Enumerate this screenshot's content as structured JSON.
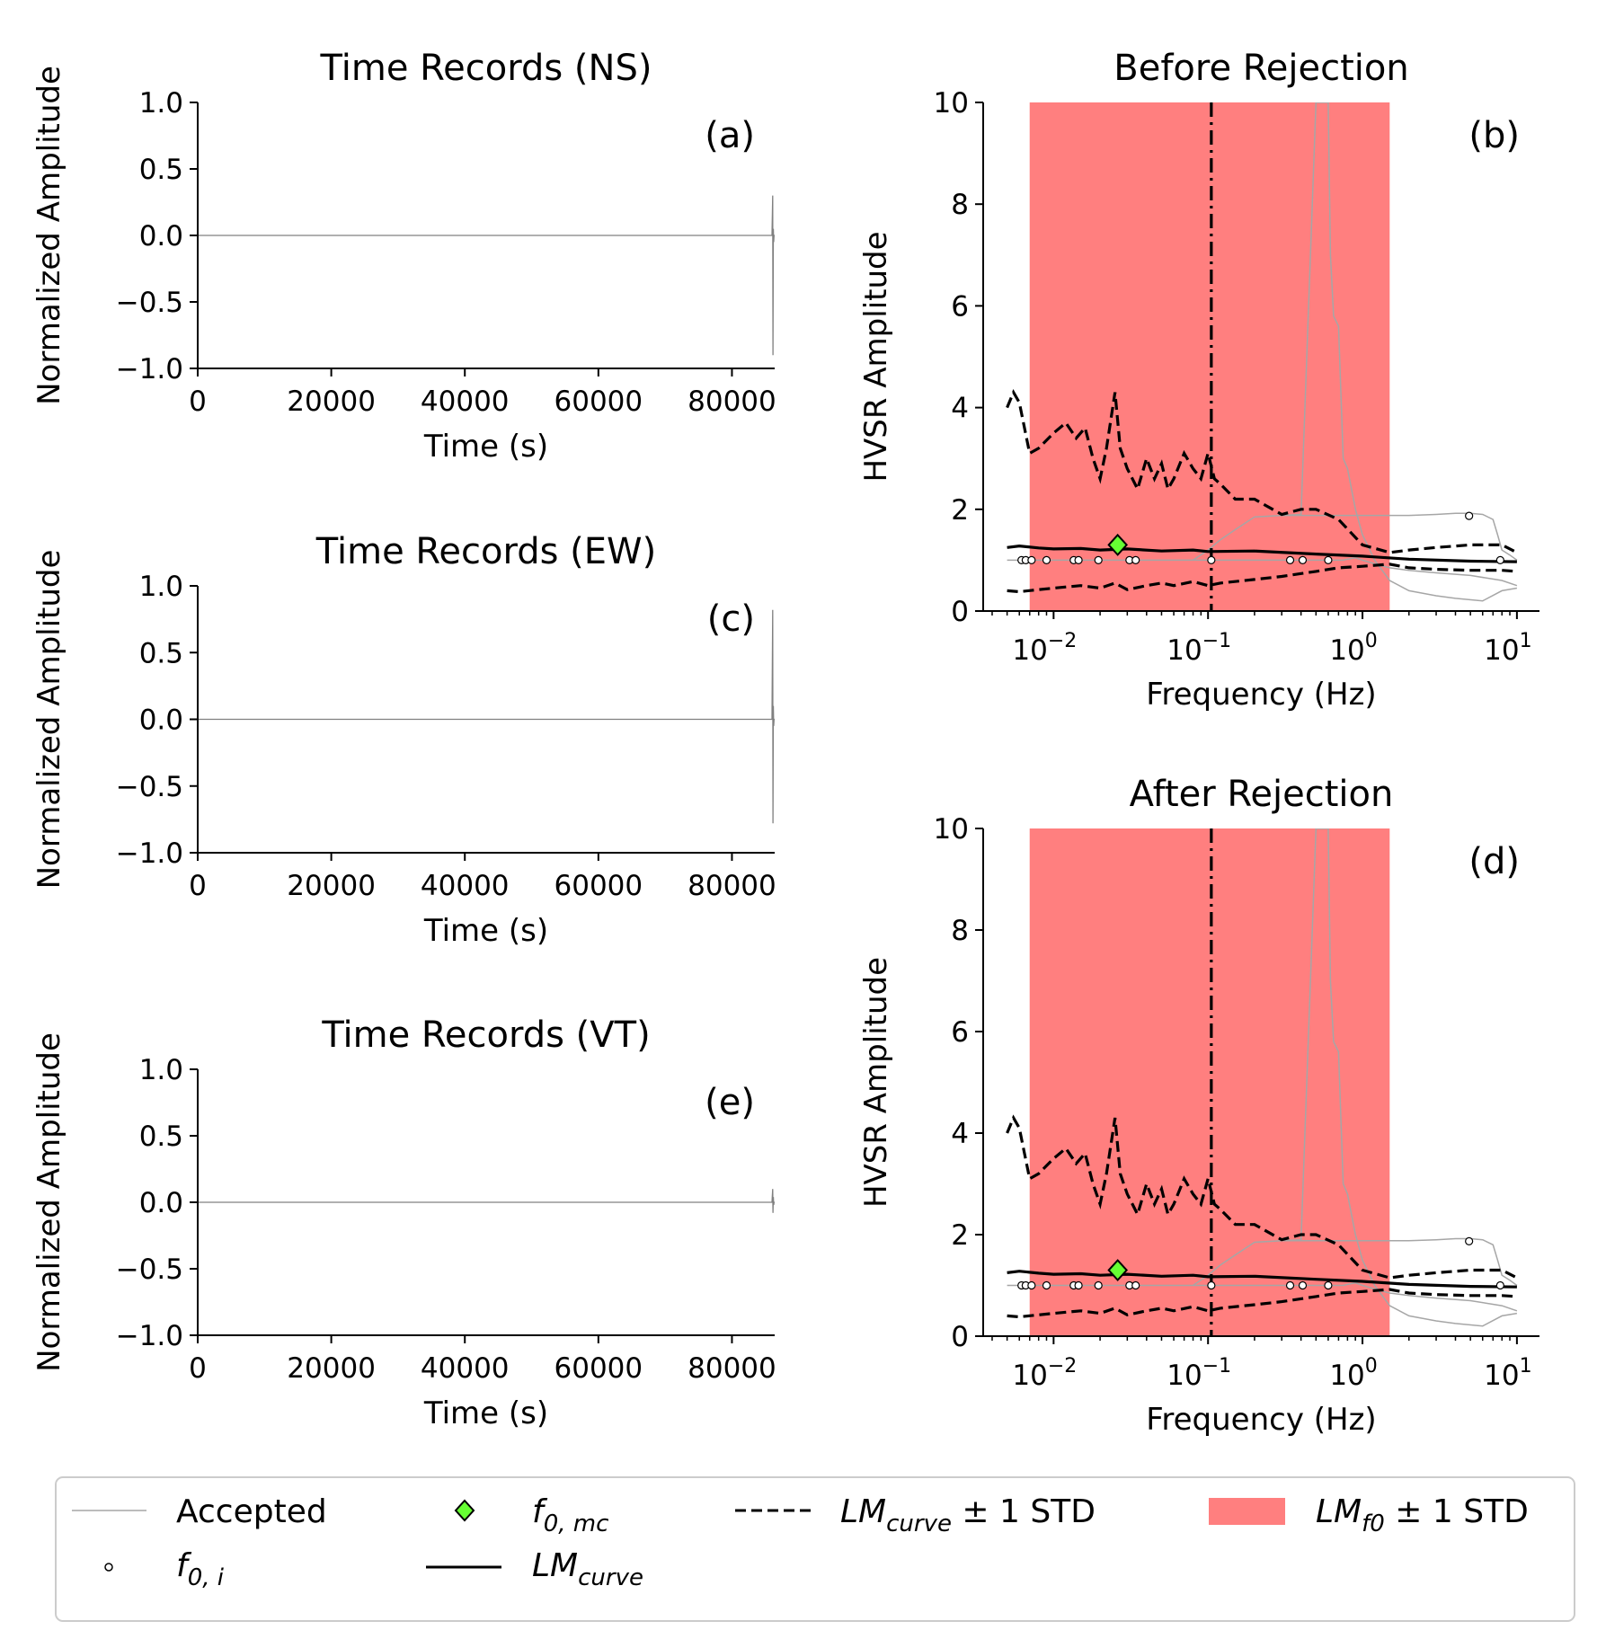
{
  "colors": {
    "trace": "#808080",
    "accepted": "#a6a6a6",
    "band": "#ff7f7f",
    "diamond": "#66ff33",
    "axis": "#000000"
  },
  "chart_data": [
    {
      "id": "a",
      "type": "line",
      "title": "Time Records (NS)",
      "panel_label": "(a)",
      "xlabel": "Time (s)",
      "ylabel": "Normalized Amplitude",
      "xlim": [
        0,
        86400
      ],
      "ylim": [
        -1.0,
        1.0
      ],
      "xticks": [
        0,
        20000,
        40000,
        60000,
        80000
      ],
      "yticks": [
        1.0,
        0.5,
        0.0,
        -0.5,
        -1.0
      ],
      "ytick_labels": [
        "1.0",
        "0.5",
        "0.0",
        "−0.5",
        "−1.0"
      ],
      "series": [
        {
          "x": [
            0,
            86000,
            86100,
            86150,
            86200,
            86250,
            86300,
            86400
          ],
          "y": [
            0,
            0,
            0.3,
            -0.9,
            0.05,
            -0.05,
            0,
            0
          ]
        }
      ]
    },
    {
      "id": "c",
      "type": "line",
      "title": "Time Records (EW)",
      "panel_label": "(c)",
      "xlabel": "Time (s)",
      "ylabel": "Normalized Amplitude",
      "xlim": [
        0,
        86400
      ],
      "ylim": [
        -1.0,
        1.0
      ],
      "xticks": [
        0,
        20000,
        40000,
        60000,
        80000
      ],
      "yticks": [
        1.0,
        0.5,
        0.0,
        -0.5,
        -1.0
      ],
      "ytick_labels": [
        "1.0",
        "0.5",
        "0.0",
        "−0.5",
        "−1.0"
      ],
      "series": [
        {
          "x": [
            0,
            86000,
            86100,
            86150,
            86200,
            86250,
            86300,
            86400
          ],
          "y": [
            0,
            0,
            0.82,
            -0.78,
            0.1,
            -0.05,
            0,
            0
          ]
        }
      ]
    },
    {
      "id": "e",
      "type": "line",
      "title": "Time Records (VT)",
      "panel_label": "(e)",
      "xlabel": "Time (s)",
      "ylabel": "Normalized Amplitude",
      "xlim": [
        0,
        86400
      ],
      "ylim": [
        -1.0,
        1.0
      ],
      "xticks": [
        0,
        20000,
        40000,
        60000,
        80000
      ],
      "yticks": [
        1.0,
        0.5,
        0.0,
        -0.5,
        -1.0
      ],
      "ytick_labels": [
        "1.0",
        "0.5",
        "0.0",
        "−0.5",
        "−1.0"
      ],
      "series": [
        {
          "x": [
            0,
            86000,
            86100,
            86150,
            86200,
            86250,
            86300,
            86400
          ],
          "y": [
            0,
            0,
            0.1,
            -0.08,
            0.04,
            -0.02,
            0,
            0
          ]
        }
      ]
    },
    {
      "id": "b",
      "type": "line",
      "title": "Before Rejection",
      "panel_label": "(b)",
      "xlabel": "Frequency (Hz)",
      "ylabel": "HVSR Amplitude",
      "xscale": "log",
      "xlim": [
        0.0035,
        14
      ],
      "ylim": [
        0,
        10
      ],
      "xticks": [
        0.01,
        0.1,
        1,
        10
      ],
      "xtick_labels": [
        [
          "10",
          "−2"
        ],
        [
          "10",
          "−1"
        ],
        [
          "10",
          "0"
        ],
        [
          "10",
          "1"
        ]
      ],
      "yticks": [
        0,
        2,
        4,
        6,
        8,
        10
      ],
      "band": [
        0.007,
        1.5
      ],
      "vline": 0.105,
      "accepted_curves": [
        {
          "x": [
            0.005,
            0.3,
            0.6,
            0.7,
            0.75,
            0.8,
            0.9,
            1.0,
            1.3,
            1.5,
            2.0,
            3.0,
            5.0,
            8.0,
            10.0
          ],
          "y": [
            1.0,
            1.0,
            1.0,
            1.0,
            1.0,
            1.02,
            1.05,
            1.0,
            0.9,
            0.85,
            0.8,
            0.75,
            0.7,
            0.6,
            0.5
          ]
        },
        {
          "x": [
            0.08,
            0.1,
            0.12,
            0.15,
            0.2,
            0.3,
            0.4,
            0.5,
            0.6,
            0.62,
            0.65,
            0.7,
            0.75,
            0.8,
            0.9,
            1.0,
            1.2,
            1.5,
            2.0,
            3.0,
            4.0,
            6.0,
            8.0,
            10.0
          ],
          "y": [
            1.0,
            1.2,
            1.4,
            1.6,
            1.85,
            1.88,
            1.9,
            10,
            10,
            7.0,
            5.8,
            5.6,
            3.0,
            2.8,
            2.0,
            1.5,
            1.0,
            0.6,
            0.4,
            0.3,
            0.25,
            0.2,
            0.4,
            0.45
          ]
        },
        {
          "x": [
            0.3,
            0.5,
            1.0,
            2.0,
            3.0,
            4.0,
            5.0,
            6.0,
            7.0,
            7.5,
            8.0,
            9.0,
            10.0
          ],
          "y": [
            1.88,
            1.88,
            1.88,
            1.88,
            1.9,
            1.92,
            1.92,
            1.9,
            1.8,
            1.5,
            1.2,
            1.1,
            1.0
          ]
        }
      ],
      "f0_i": [
        0.0062,
        0.0066,
        0.0072,
        0.009,
        0.0135,
        0.0145,
        0.0195,
        0.031,
        0.034,
        0.105,
        0.34,
        0.41,
        0.6,
        4.9,
        7.8
      ],
      "f0_i_y": [
        1.0,
        1.0,
        1.0,
        1.0,
        1.0,
        1.0,
        1.0,
        1.0,
        1.0,
        1.0,
        1.0,
        1.0,
        1.0,
        1.87,
        1.0
      ],
      "f0_mc": {
        "x": 0.026,
        "y": 1.3
      },
      "lm_curve": {
        "x": [
          0.005,
          0.006,
          0.008,
          0.01,
          0.015,
          0.02,
          0.03,
          0.05,
          0.08,
          0.1,
          0.2,
          0.5,
          1.0,
          2.0,
          5.0,
          10.0
        ],
        "y": [
          1.25,
          1.28,
          1.24,
          1.22,
          1.23,
          1.2,
          1.22,
          1.18,
          1.2,
          1.17,
          1.18,
          1.12,
          1.08,
          1.02,
          0.98,
          0.97
        ]
      },
      "lm_upper": {
        "x": [
          0.005,
          0.0055,
          0.006,
          0.007,
          0.008,
          0.01,
          0.012,
          0.014,
          0.016,
          0.018,
          0.02,
          0.022,
          0.025,
          0.027,
          0.03,
          0.035,
          0.04,
          0.045,
          0.05,
          0.055,
          0.06,
          0.07,
          0.08,
          0.09,
          0.1,
          0.11,
          0.12,
          0.15,
          0.2,
          0.3,
          0.4,
          0.5,
          0.7,
          1.0,
          1.5,
          2.0,
          3.0,
          5.0,
          8.0,
          10.0
        ],
        "y": [
          4.0,
          4.3,
          4.1,
          3.1,
          3.2,
          3.5,
          3.7,
          3.4,
          3.6,
          3.0,
          2.6,
          3.2,
          4.3,
          3.2,
          2.8,
          2.4,
          3.0,
          2.6,
          2.9,
          2.4,
          2.6,
          3.1,
          2.8,
          2.6,
          3.1,
          2.6,
          2.5,
          2.2,
          2.2,
          1.9,
          2.0,
          2.0,
          1.8,
          1.3,
          1.15,
          1.2,
          1.25,
          1.3,
          1.3,
          1.15
        ]
      },
      "lm_lower": {
        "x": [
          0.005,
          0.006,
          0.008,
          0.01,
          0.015,
          0.02,
          0.025,
          0.03,
          0.04,
          0.05,
          0.06,
          0.08,
          0.1,
          0.12,
          0.2,
          0.3,
          0.5,
          0.7,
          1.0,
          1.5,
          2.0,
          3.0,
          5.0,
          8.0,
          10.0
        ],
        "y": [
          0.4,
          0.38,
          0.42,
          0.45,
          0.5,
          0.45,
          0.55,
          0.42,
          0.5,
          0.55,
          0.5,
          0.58,
          0.5,
          0.55,
          0.62,
          0.68,
          0.78,
          0.85,
          0.88,
          0.92,
          0.85,
          0.82,
          0.8,
          0.8,
          0.78
        ]
      }
    },
    {
      "id": "d",
      "type": "line",
      "title": "After Rejection",
      "panel_label": "(d)",
      "xlabel": "Frequency (Hz)",
      "ylabel": "HVSR Amplitude",
      "xscale": "log",
      "xlim": [
        0.0035,
        14
      ],
      "ylim": [
        0,
        10
      ],
      "xticks": [
        0.01,
        0.1,
        1,
        10
      ],
      "xtick_labels": [
        [
          "10",
          "−2"
        ],
        [
          "10",
          "−1"
        ],
        [
          "10",
          "0"
        ],
        [
          "10",
          "1"
        ]
      ],
      "yticks": [
        0,
        2,
        4,
        6,
        8,
        10
      ],
      "band": [
        0.007,
        1.5
      ],
      "vline": 0.105,
      "accepted_curves": [
        {
          "x": [
            0.005,
            0.3,
            0.6,
            0.7,
            0.75,
            0.8,
            0.9,
            1.0,
            1.3,
            1.5,
            2.0,
            3.0,
            5.0,
            8.0,
            10.0
          ],
          "y": [
            1.0,
            1.0,
            1.0,
            1.0,
            1.0,
            1.02,
            1.05,
            1.0,
            0.9,
            0.85,
            0.8,
            0.75,
            0.7,
            0.6,
            0.5
          ]
        },
        {
          "x": [
            0.08,
            0.1,
            0.12,
            0.15,
            0.2,
            0.3,
            0.4,
            0.5,
            0.6,
            0.62,
            0.65,
            0.7,
            0.75,
            0.8,
            0.9,
            1.0,
            1.2,
            1.5,
            2.0,
            3.0,
            4.0,
            6.0,
            8.0,
            10.0
          ],
          "y": [
            1.0,
            1.2,
            1.4,
            1.6,
            1.85,
            1.88,
            1.9,
            10,
            10,
            7.0,
            5.8,
            5.6,
            3.0,
            2.8,
            2.0,
            1.5,
            1.0,
            0.6,
            0.4,
            0.3,
            0.25,
            0.2,
            0.4,
            0.45
          ]
        },
        {
          "x": [
            0.3,
            0.5,
            1.0,
            2.0,
            3.0,
            4.0,
            5.0,
            6.0,
            7.0,
            7.5,
            8.0,
            9.0,
            10.0
          ],
          "y": [
            1.88,
            1.88,
            1.88,
            1.88,
            1.9,
            1.92,
            1.92,
            1.9,
            1.8,
            1.5,
            1.2,
            1.1,
            1.0
          ]
        }
      ],
      "f0_i": [
        0.0062,
        0.0066,
        0.0072,
        0.009,
        0.0135,
        0.0145,
        0.0195,
        0.031,
        0.034,
        0.105,
        0.34,
        0.41,
        0.6,
        4.9,
        7.8
      ],
      "f0_i_y": [
        1.0,
        1.0,
        1.0,
        1.0,
        1.0,
        1.0,
        1.0,
        1.0,
        1.0,
        1.0,
        1.0,
        1.0,
        1.0,
        1.87,
        1.0
      ],
      "f0_mc": {
        "x": 0.026,
        "y": 1.3
      },
      "lm_curve": {
        "x": [
          0.005,
          0.006,
          0.008,
          0.01,
          0.015,
          0.02,
          0.03,
          0.05,
          0.08,
          0.1,
          0.2,
          0.5,
          1.0,
          2.0,
          5.0,
          10.0
        ],
        "y": [
          1.25,
          1.28,
          1.24,
          1.22,
          1.23,
          1.2,
          1.22,
          1.18,
          1.2,
          1.17,
          1.18,
          1.12,
          1.08,
          1.02,
          0.98,
          0.97
        ]
      },
      "lm_upper": {
        "x": [
          0.005,
          0.0055,
          0.006,
          0.007,
          0.008,
          0.01,
          0.012,
          0.014,
          0.016,
          0.018,
          0.02,
          0.022,
          0.025,
          0.027,
          0.03,
          0.035,
          0.04,
          0.045,
          0.05,
          0.055,
          0.06,
          0.07,
          0.08,
          0.09,
          0.1,
          0.11,
          0.12,
          0.15,
          0.2,
          0.3,
          0.4,
          0.5,
          0.7,
          1.0,
          1.5,
          2.0,
          3.0,
          5.0,
          8.0,
          10.0
        ],
        "y": [
          4.0,
          4.3,
          4.1,
          3.1,
          3.2,
          3.5,
          3.7,
          3.4,
          3.6,
          3.0,
          2.6,
          3.2,
          4.3,
          3.2,
          2.8,
          2.4,
          3.0,
          2.6,
          2.9,
          2.4,
          2.6,
          3.1,
          2.8,
          2.6,
          3.1,
          2.6,
          2.5,
          2.2,
          2.2,
          1.9,
          2.0,
          2.0,
          1.8,
          1.3,
          1.15,
          1.2,
          1.25,
          1.3,
          1.3,
          1.15
        ]
      },
      "lm_lower": {
        "x": [
          0.005,
          0.006,
          0.008,
          0.01,
          0.015,
          0.02,
          0.025,
          0.03,
          0.04,
          0.05,
          0.06,
          0.08,
          0.1,
          0.12,
          0.2,
          0.3,
          0.5,
          0.7,
          1.0,
          1.5,
          2.0,
          3.0,
          5.0,
          8.0,
          10.0
        ],
        "y": [
          0.4,
          0.38,
          0.42,
          0.45,
          0.5,
          0.45,
          0.55,
          0.42,
          0.5,
          0.55,
          0.5,
          0.58,
          0.5,
          0.55,
          0.62,
          0.68,
          0.78,
          0.85,
          0.88,
          0.92,
          0.85,
          0.82,
          0.8,
          0.8,
          0.78
        ]
      }
    }
  ],
  "legend": {
    "accepted": "Accepted",
    "f0_i_base": "f",
    "f0_i_sub": "0, i",
    "f0_mc_base": "f",
    "f0_mc_sub": "0, mc",
    "lm_curve_base": "LM",
    "lm_curve_sub": "curve",
    "lm_std_base": "LM",
    "lm_std_sub": "curve",
    "lm_std_suffix": " ± 1 STD",
    "lm_f0_base": "LM",
    "lm_f0_sub": "f0",
    "lm_f0_suffix": " ± 1 STD"
  }
}
